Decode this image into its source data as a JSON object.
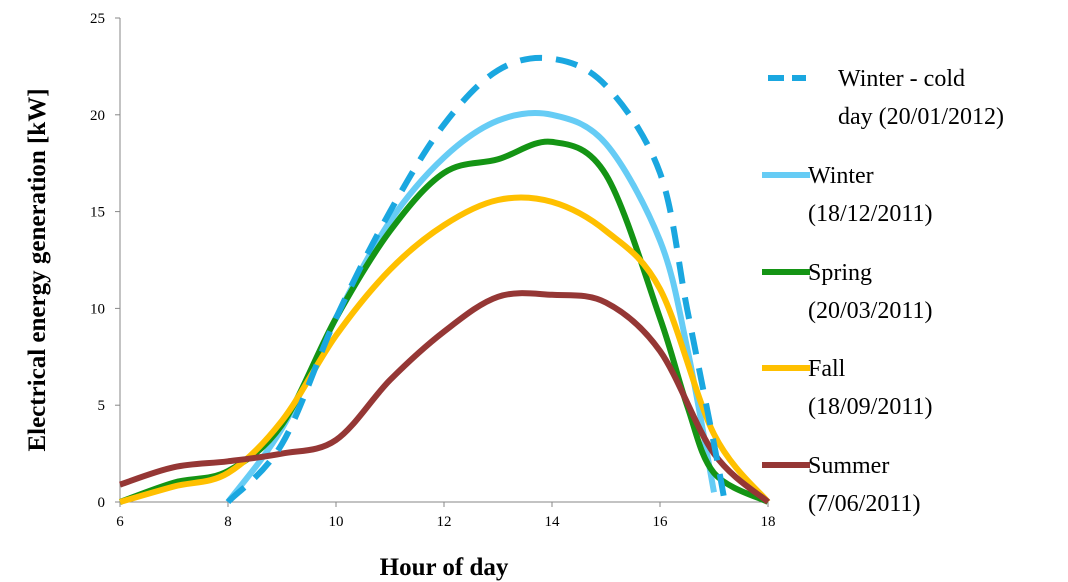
{
  "chart_data": {
    "type": "line",
    "xlabel": "Hour of day",
    "ylabel": "Electrical energy generation [kW]",
    "xlim": [
      6,
      18
    ],
    "ylim": [
      0,
      25
    ],
    "x_ticks": [
      6,
      8,
      10,
      12,
      14,
      16,
      18
    ],
    "y_ticks": [
      0,
      5,
      10,
      15,
      20,
      25
    ],
    "grid": false,
    "legend_position": "right",
    "series": [
      {
        "name_lines": [
          "Winter - cold",
          "day (20/01/2012)"
        ],
        "color": "#1aa7e0",
        "dashed": true,
        "points": [
          [
            8,
            0
          ],
          [
            9,
            3
          ],
          [
            10,
            9.5
          ],
          [
            11,
            15
          ],
          [
            12,
            19.5
          ],
          [
            13,
            22.3
          ],
          [
            14,
            22.9
          ],
          [
            15,
            21.5
          ],
          [
            16,
            17
          ],
          [
            16.5,
            10
          ],
          [
            17,
            3
          ],
          [
            17.2,
            0
          ]
        ]
      },
      {
        "name_lines": [
          "Winter",
          "(18/12/2011)"
        ],
        "color": "#66ccf5",
        "dashed": false,
        "points": [
          [
            8,
            0
          ],
          [
            9,
            3.8
          ],
          [
            10,
            9.5
          ],
          [
            11,
            14.5
          ],
          [
            12,
            17.8
          ],
          [
            13,
            19.7
          ],
          [
            14,
            20
          ],
          [
            15,
            18.5
          ],
          [
            16,
            13.5
          ],
          [
            16.5,
            8
          ],
          [
            17,
            0.5
          ]
        ]
      },
      {
        "name_lines": [
          "Spring",
          "(20/03/2011)"
        ],
        "color": "#149414",
        "dashed": false,
        "points": [
          [
            6,
            0
          ],
          [
            7,
            1
          ],
          [
            8,
            1.6
          ],
          [
            9,
            4
          ],
          [
            10,
            9.5
          ],
          [
            11,
            14
          ],
          [
            12,
            17
          ],
          [
            13,
            17.7
          ],
          [
            14,
            18.6
          ],
          [
            15,
            16.9
          ],
          [
            16,
            9.5
          ],
          [
            16.5,
            5
          ],
          [
            17,
            1.5
          ],
          [
            18,
            0
          ]
        ]
      },
      {
        "name_lines": [
          "Fall",
          "(18/09/2011)"
        ],
        "color": "#ffc000",
        "dashed": false,
        "points": [
          [
            6,
            0
          ],
          [
            7,
            0.8
          ],
          [
            8,
            1.5
          ],
          [
            9,
            4.2
          ],
          [
            10,
            8.6
          ],
          [
            11,
            12
          ],
          [
            12,
            14.3
          ],
          [
            13,
            15.6
          ],
          [
            14,
            15.5
          ],
          [
            15,
            14
          ],
          [
            16,
            11
          ],
          [
            17,
            3.5
          ],
          [
            18,
            0
          ]
        ]
      },
      {
        "name_lines": [
          "Summer",
          "(7/06/2011)"
        ],
        "color": "#953735",
        "dashed": false,
        "points": [
          [
            6,
            0.9
          ],
          [
            7,
            1.8
          ],
          [
            8,
            2.1
          ],
          [
            9,
            2.5
          ],
          [
            10,
            3.2
          ],
          [
            11,
            6.3
          ],
          [
            12,
            8.8
          ],
          [
            13,
            10.6
          ],
          [
            14,
            10.7
          ],
          [
            15,
            10.3
          ],
          [
            16,
            7.8
          ],
          [
            17,
            2.5
          ],
          [
            18,
            0
          ]
        ]
      }
    ]
  }
}
